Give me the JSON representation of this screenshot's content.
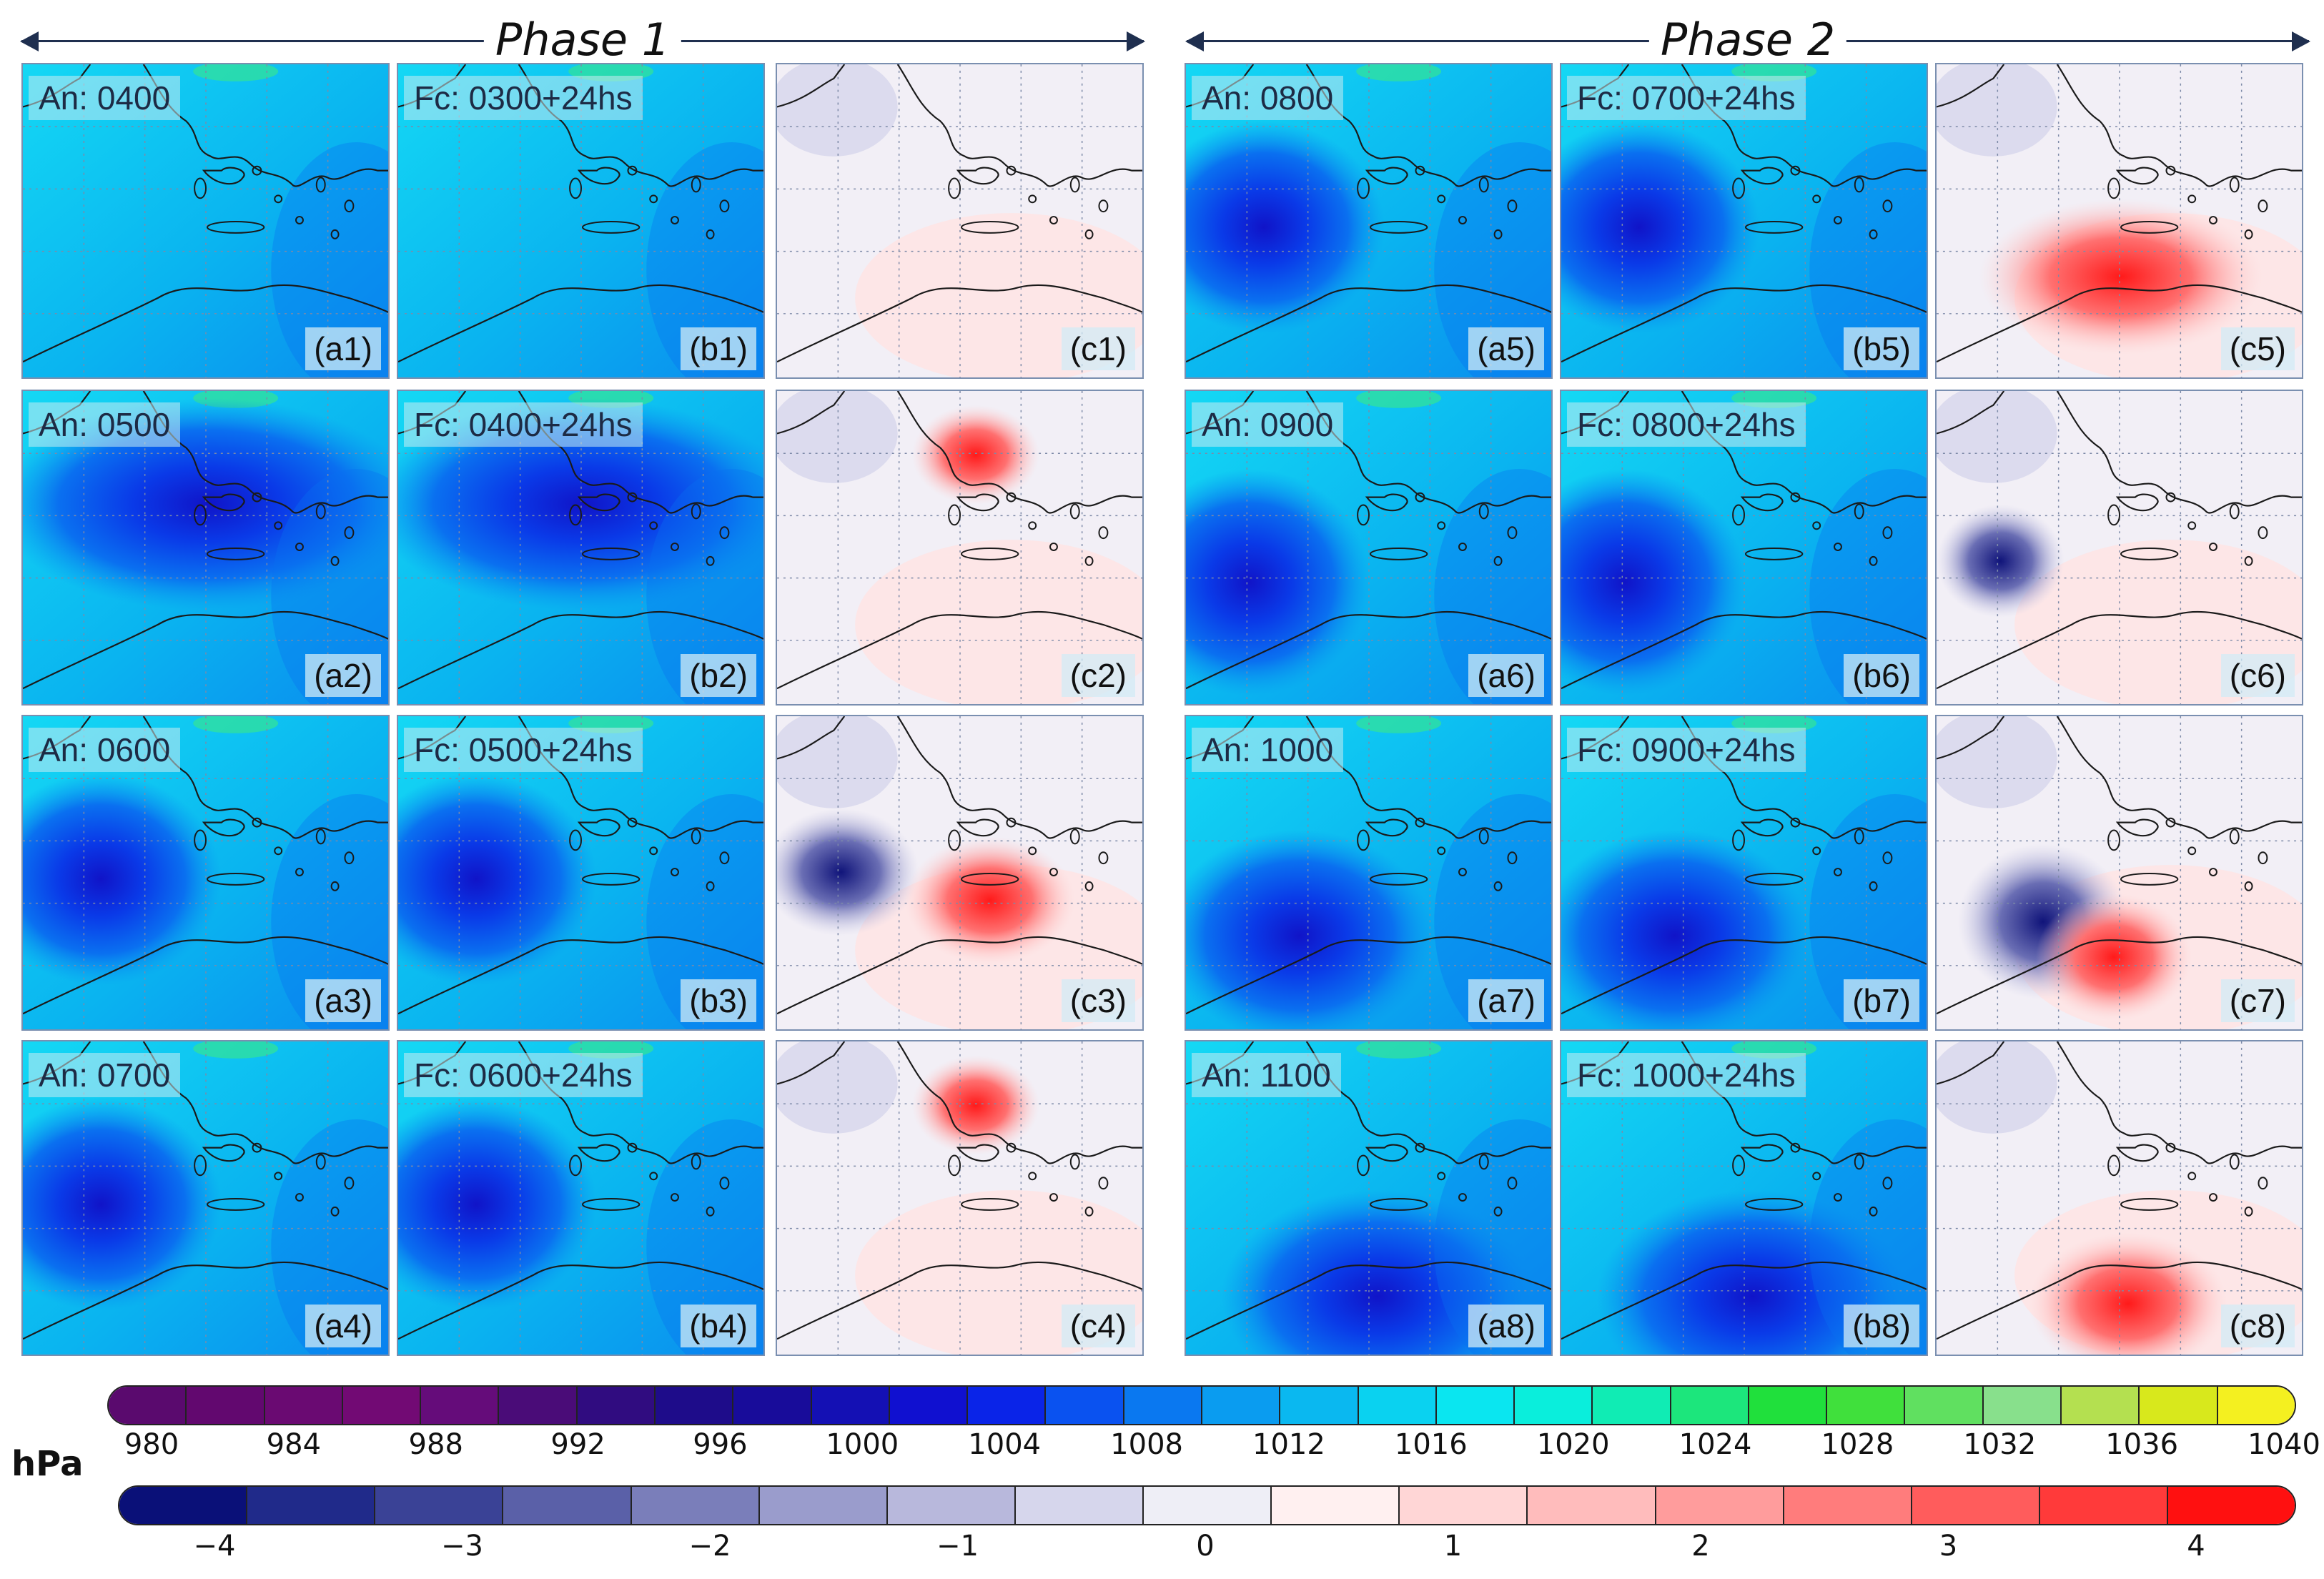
{
  "phases": [
    {
      "label": "Phase 1"
    },
    {
      "label": "Phase 2"
    }
  ],
  "panels": [
    {
      "title": "An: 0400",
      "id": "(a1)",
      "kind": "analysis",
      "low": null
    },
    {
      "title": "Fc: 0300+24hs",
      "id": "(b1)",
      "kind": "forecast",
      "low": null
    },
    {
      "title": "",
      "id": "(c1)",
      "kind": "diff",
      "low": null
    },
    {
      "title": "An: 0800",
      "id": "(a5)",
      "kind": "analysis",
      "low": "west"
    },
    {
      "title": "Fc: 0700+24hs",
      "id": "(b5)",
      "kind": "forecast",
      "low": "west"
    },
    {
      "title": "",
      "id": "(c5)",
      "kind": "diff",
      "low": "south-red"
    },
    {
      "title": "An: 0500",
      "id": "(a2)",
      "kind": "analysis",
      "low": "broad"
    },
    {
      "title": "Fc: 0400+24hs",
      "id": "(b2)",
      "kind": "forecast",
      "low": "broad"
    },
    {
      "title": "",
      "id": "(c2)",
      "kind": "diff",
      "low": "greece-red"
    },
    {
      "title": "An: 0900",
      "id": "(a6)",
      "kind": "analysis",
      "low": "west-deep"
    },
    {
      "title": "Fc: 0800+24hs",
      "id": "(b6)",
      "kind": "forecast",
      "low": "west-deep"
    },
    {
      "title": "",
      "id": "(c6)",
      "kind": "diff",
      "low": "west-blue"
    },
    {
      "title": "An: 0600",
      "id": "(a3)",
      "kind": "analysis",
      "low": "west"
    },
    {
      "title": "Fc: 0500+24hs",
      "id": "(b3)",
      "kind": "forecast",
      "low": "west"
    },
    {
      "title": "",
      "id": "(c3)",
      "kind": "diff",
      "low": "mixed"
    },
    {
      "title": "An: 1000",
      "id": "(a7)",
      "kind": "analysis",
      "low": "south-deep"
    },
    {
      "title": "Fc: 0900+24hs",
      "id": "(b7)",
      "kind": "forecast",
      "low": "south-deep"
    },
    {
      "title": "",
      "id": "(c7)",
      "kind": "diff",
      "low": "dipole"
    },
    {
      "title": "An: 0700",
      "id": "(a4)",
      "kind": "analysis",
      "low": "west"
    },
    {
      "title": "Fc: 0600+24hs",
      "id": "(b4)",
      "kind": "forecast",
      "low": "west"
    },
    {
      "title": "",
      "id": "(c4)",
      "kind": "diff",
      "low": "greece-red"
    },
    {
      "title": "An: 1100",
      "id": "(a8)",
      "kind": "analysis",
      "low": "southeast-deep"
    },
    {
      "title": "Fc: 1000+24hs",
      "id": "(b8)",
      "kind": "forecast",
      "low": "southeast-deep"
    },
    {
      "title": "",
      "id": "(c8)",
      "kind": "diff",
      "low": "southeast-red"
    }
  ],
  "colorbar_pressure": {
    "colors": [
      "#5a0a6e",
      "#62086f",
      "#6a0a72",
      "#720a74",
      "#650c7a",
      "#4a0c78",
      "#300c80",
      "#1e0c8a",
      "#180c9a",
      "#1410b4",
      "#1010d0",
      "#0a24e8",
      "#0a52f0",
      "#0a78f0",
      "#0a9cf0",
      "#0ab8f0",
      "#0ad2f0",
      "#0ae6f0",
      "#0aeedc",
      "#10ecb4",
      "#1ce67c",
      "#20e03c",
      "#40e03c",
      "#60e060",
      "#88e08c",
      "#b4e050",
      "#d8e81c",
      "#f4f020"
    ],
    "ticks": [
      "980",
      "984",
      "988",
      "992",
      "996",
      "1000",
      "1004",
      "1008",
      "1012",
      "1016",
      "1020",
      "1024",
      "1028",
      "1032",
      "1036",
      "1040"
    ]
  },
  "colorbar_diff": {
    "colors": [
      "#0a1078",
      "#202a8a",
      "#3a4296",
      "#5a60a8",
      "#7a7eba",
      "#9a9ccc",
      "#b8b8dc",
      "#d6d6ec",
      "#eeeef6",
      "#fff0f0",
      "#ffd6d6",
      "#ffbcbc",
      "#ff9c9c",
      "#ff7c7c",
      "#ff5c5c",
      "#ff3a3a",
      "#ff1010"
    ],
    "ticks": [
      "−4",
      "−3",
      "−2",
      "−1",
      "0",
      "1",
      "2",
      "3",
      "4"
    ]
  },
  "unit_label": "hPa"
}
